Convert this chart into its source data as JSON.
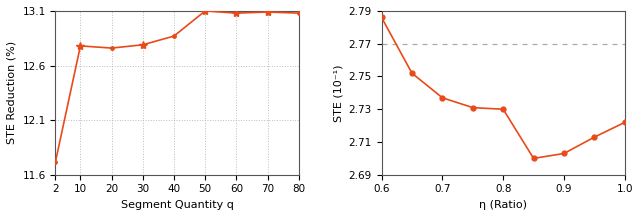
{
  "left": {
    "x": [
      2,
      10,
      20,
      30,
      40,
      50,
      60,
      70,
      80
    ],
    "y": [
      11.72,
      12.78,
      12.76,
      12.79,
      12.87,
      13.1,
      13.08,
      13.09,
      13.08
    ],
    "xlabel": "Segment Quantity q",
    "ylabel": "STE Reduction (%)",
    "ylim": [
      11.6,
      13.1
    ],
    "yticks": [
      11.6,
      12.1,
      12.6,
      13.1
    ],
    "xticks": [
      2,
      10,
      20,
      30,
      40,
      50,
      60,
      70,
      80
    ],
    "star_indices": [
      1,
      3,
      5,
      6,
      7
    ],
    "line_color": "#e84a1a",
    "grid_color": "#bbbbbb"
  },
  "right": {
    "x": [
      0.6,
      0.65,
      0.7,
      0.75,
      0.8,
      0.85,
      0.9,
      0.95,
      1.0
    ],
    "y": [
      2.786,
      2.752,
      2.737,
      2.731,
      2.73,
      2.7,
      2.703,
      2.713,
      2.722
    ],
    "hline_y": 2.77,
    "xlabel": "η (Ratio)",
    "ylabel": "STE (10⁻¹)",
    "ylim": [
      2.69,
      2.79
    ],
    "yticks": [
      2.69,
      2.71,
      2.73,
      2.75,
      2.77,
      2.79
    ],
    "xticks": [
      0.6,
      0.7,
      0.8,
      0.9,
      1.0
    ],
    "line_color": "#e84a1a",
    "hline_color": "#aaaaaa"
  },
  "figure_width": 6.4,
  "figure_height": 2.17,
  "dpi": 100
}
